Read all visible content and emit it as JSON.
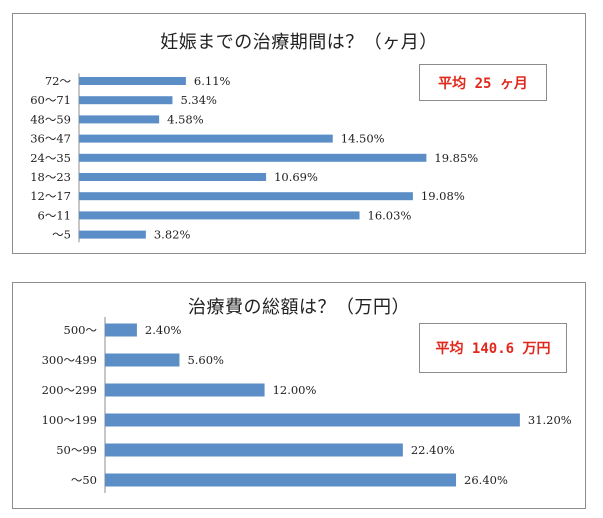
{
  "chart_data": [
    {
      "type": "bar",
      "orientation": "horizontal",
      "title": "妊娠までの治療期間は？（ヶ月）",
      "average_label": "平均 25 ヶ月",
      "categories": [
        "72～",
        "60～71",
        "48～59",
        "36～47",
        "24～35",
        "18～23",
        "12～17",
        "6～11",
        "～5"
      ],
      "values": [
        6.11,
        5.34,
        4.58,
        14.5,
        19.85,
        10.69,
        19.08,
        16.03,
        3.82
      ],
      "value_labels": [
        "6.11%",
        "5.34%",
        "4.58%",
        "14.50%",
        "19.85%",
        "10.69%",
        "19.08%",
        "16.03%",
        "3.82%"
      ],
      "unit": "%",
      "xlim": [
        0,
        24
      ],
      "color": "#5b8ec6",
      "grid": false,
      "xlabel": "",
      "ylabel": ""
    },
    {
      "type": "bar",
      "orientation": "horizontal",
      "title": "治療費の総額は？（万円）",
      "average_label": "平均 140.6 万円",
      "categories": [
        "500～",
        "300～499",
        "200～299",
        "100～199",
        "50～99",
        "～50"
      ],
      "values": [
        2.4,
        5.6,
        12.0,
        31.2,
        22.4,
        26.4
      ],
      "value_labels": [
        "2.40%",
        "5.60%",
        "12.00%",
        "31.20%",
        "22.40%",
        "26.40%"
      ],
      "unit": "%",
      "xlim": [
        0,
        37
      ],
      "color": "#5b8ec6",
      "grid": false,
      "xlabel": "",
      "ylabel": ""
    }
  ]
}
